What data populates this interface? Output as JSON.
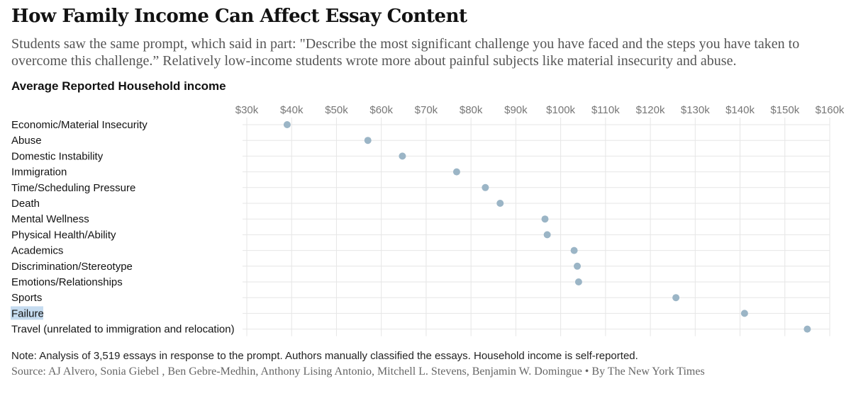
{
  "title": "How Family Income Can Affect Essay Content",
  "subtitle": "Students saw the same prompt, which said in part: \"Describe the most significant challenge you have faced and the steps you have taken to overcome this challenge.” Relatively low-income students wrote more about painful subjects like material insecurity and abuse.",
  "section_label": "Average Reported Household income",
  "note": "Note: Analysis of 3,519 essays in response to the prompt. Authors manually classified the essays. Household income is self-reported.",
  "source": "Source: AJ Alvero, Sonia Giebel , Ben Gebre-Medhin, Anthony Lising Antonio, Mitchell L. Stevens, Benjamin W. Domingue • By The New York Times",
  "highlighted_category": "Failure",
  "colors": {
    "dot": "#9bb5c6",
    "grid": "#e6e6e6",
    "tick_text": "#777777",
    "label_text": "#121212",
    "highlight": "#c6dcf0"
  },
  "chart_data": {
    "type": "scatter",
    "title": "Average Reported Household income",
    "xlabel": "",
    "ylabel": "",
    "xlim": [
      30000,
      160000
    ],
    "x_ticks": [
      30000,
      40000,
      50000,
      60000,
      70000,
      80000,
      90000,
      100000,
      110000,
      120000,
      130000,
      140000,
      150000,
      160000
    ],
    "x_tick_labels": [
      "$30k",
      "$40k",
      "$50k",
      "$60k",
      "$70k",
      "$80k",
      "$90k",
      "$100k",
      "$110k",
      "$120k",
      "$130k",
      "$140k",
      "$150k",
      "$160k"
    ],
    "grid": true,
    "categories": [
      "Economic/Material Insecurity",
      "Abuse",
      "Domestic Instability",
      "Immigration",
      "Time/Scheduling Pressure",
      "Death",
      "Mental Wellness",
      "Physical Health/Ability",
      "Academics",
      "Discrimination/Stereotype",
      "Emotions/Relationships",
      "Sports",
      "Failure",
      "Travel (unrelated to immigration and relocation)"
    ],
    "values": [
      39000,
      57000,
      64700,
      76800,
      83200,
      86500,
      96500,
      97000,
      103000,
      103700,
      104000,
      125700,
      141000,
      155000
    ]
  }
}
